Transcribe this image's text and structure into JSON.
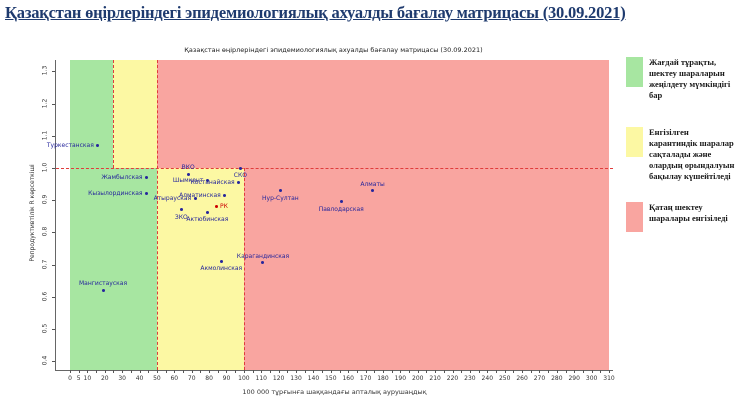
{
  "header": {
    "title": "Қазақстан өңірлеріндегі эпидемиологиялық ахуалды бағалау матрицасы  (30.09.2021)"
  },
  "chart_data": {
    "type": "scatter",
    "title": "Қазақстан өңірлеріндегі эпидемиологиялық ахуалды бағалау матрицасы  (30.09.2021)",
    "xlabel": "100 000 тұрғынға шаққандағы апталық аурушаңдық",
    "ylabel": "Репродуктивтілік R көрсеткіші",
    "xlim": [
      0,
      310
    ],
    "ylim": [
      0.4,
      1.3
    ],
    "x_tick_labels": [
      0,
      5,
      10,
      20,
      30,
      40,
      50,
      60,
      70,
      80,
      90,
      100,
      110,
      120,
      130,
      140,
      150,
      160,
      170,
      180,
      190,
      200,
      210,
      220,
      230,
      240,
      250,
      260,
      270,
      280,
      290,
      300,
      310
    ],
    "x_minor_tick_step": 5,
    "y_ticks": [
      0.4,
      0.5,
      0.6,
      0.7,
      0.8,
      0.9,
      1.0,
      1.1,
      1.2,
      1.3
    ],
    "grid": false,
    "legend_position": "right",
    "threshold_r": 1.0,
    "zone_colors": {
      "green": "#a7e6a1",
      "yellow": "#fcf8a3",
      "red": "#f9a5a0"
    },
    "zones": {
      "above_r1": [
        {
          "color": "green",
          "x0": 0,
          "x1": 25
        },
        {
          "color": "yellow",
          "x0": 25,
          "x1": 50
        },
        {
          "color": "red",
          "x0": 50,
          "x1": 310
        }
      ],
      "below_r1": [
        {
          "color": "green",
          "x0": 0,
          "x1": 50
        },
        {
          "color": "yellow",
          "x0": 50,
          "x1": 100
        },
        {
          "color": "red",
          "x0": 100,
          "x1": 310
        }
      ]
    },
    "boundaries": [
      {
        "x": 25,
        "span": "above"
      },
      {
        "x": 50,
        "span": "full"
      },
      {
        "x": 100,
        "span": "below"
      }
    ],
    "point_color": "#26269c",
    "highlight_color": "#cc0000",
    "dash_color": "#e03c3c",
    "points": [
      {
        "name": "Туркестанская",
        "x": 16,
        "r": 1.07,
        "label_pos": "left"
      },
      {
        "name": "Жамбылская",
        "x": 44,
        "r": 0.97,
        "label_pos": "left"
      },
      {
        "name": "Кызылординская",
        "x": 44,
        "r": 0.92,
        "label_pos": "left"
      },
      {
        "name": "Мангистауская",
        "x": 19,
        "r": 0.62,
        "label_pos": "above"
      },
      {
        "name": "ВКО",
        "x": 68,
        "r": 0.98,
        "label_pos": "above"
      },
      {
        "name": "СКО",
        "x": 98,
        "r": 1.0,
        "label_pos": "below"
      },
      {
        "name": "Шымкент",
        "x": 79,
        "r": 0.96,
        "label_pos": "left"
      },
      {
        "name": "Костанайская",
        "x": 97,
        "r": 0.955,
        "label_pos": "left"
      },
      {
        "name": "Алматинская",
        "x": 89,
        "r": 0.915,
        "label_pos": "left"
      },
      {
        "name": "Атырауская",
        "x": 72,
        "r": 0.905,
        "label_pos": "left"
      },
      {
        "name": "РК",
        "x": 84,
        "r": 0.88,
        "label_pos": "right",
        "highlight": true
      },
      {
        "name": "ЗКО",
        "x": 64,
        "r": 0.87,
        "label_pos": "below"
      },
      {
        "name": "Актюбинская",
        "x": 79,
        "r": 0.862,
        "label_pos": "below"
      },
      {
        "name": "Акмолинская",
        "x": 87,
        "r": 0.71,
        "label_pos": "below"
      },
      {
        "name": "Карагандинская",
        "x": 111,
        "r": 0.705,
        "label_pos": "above"
      },
      {
        "name": "Нур-Султан",
        "x": 121,
        "r": 0.93,
        "label_pos": "below"
      },
      {
        "name": "Алматы",
        "x": 174,
        "r": 0.93,
        "label_pos": "above"
      },
      {
        "name": "Павлодарская",
        "x": 156,
        "r": 0.895,
        "label_pos": "below"
      }
    ]
  },
  "legend": {
    "items": [
      {
        "color": "#a7e6a1",
        "label": "Жағдай тұрақты, шектеу шараларын жеңілдету мүмкіндігі бар"
      },
      {
        "color": "#fcf8a3",
        "label": "Енгізілген карантиндік шаралар сақталады және олардың орындалуын бақылау күшейтіледі"
      },
      {
        "color": "#f9a5a0",
        "label": "Қатаң шектеу шаралары енгізіледі"
      }
    ]
  }
}
